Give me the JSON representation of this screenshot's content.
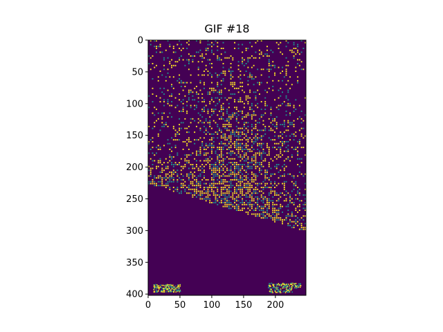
{
  "chart_data": {
    "type": "heatmap",
    "title": "GIF #18",
    "xlabel": "",
    "ylabel": "",
    "image_shape": [
      402,
      248
    ],
    "xlim": [
      0,
      248
    ],
    "ylim": [
      402,
      0
    ],
    "x_ticks": [
      0,
      50,
      100,
      150,
      200
    ],
    "y_ticks": [
      0,
      50,
      100,
      150,
      200,
      250,
      300,
      350,
      400
    ],
    "colormap": "viridis",
    "value_set": [
      0,
      1,
      2
    ],
    "value_colors": {
      "0": "#440154",
      "1": "#21918c",
      "2": "#fde725"
    },
    "grid": false,
    "legend": "none"
  }
}
